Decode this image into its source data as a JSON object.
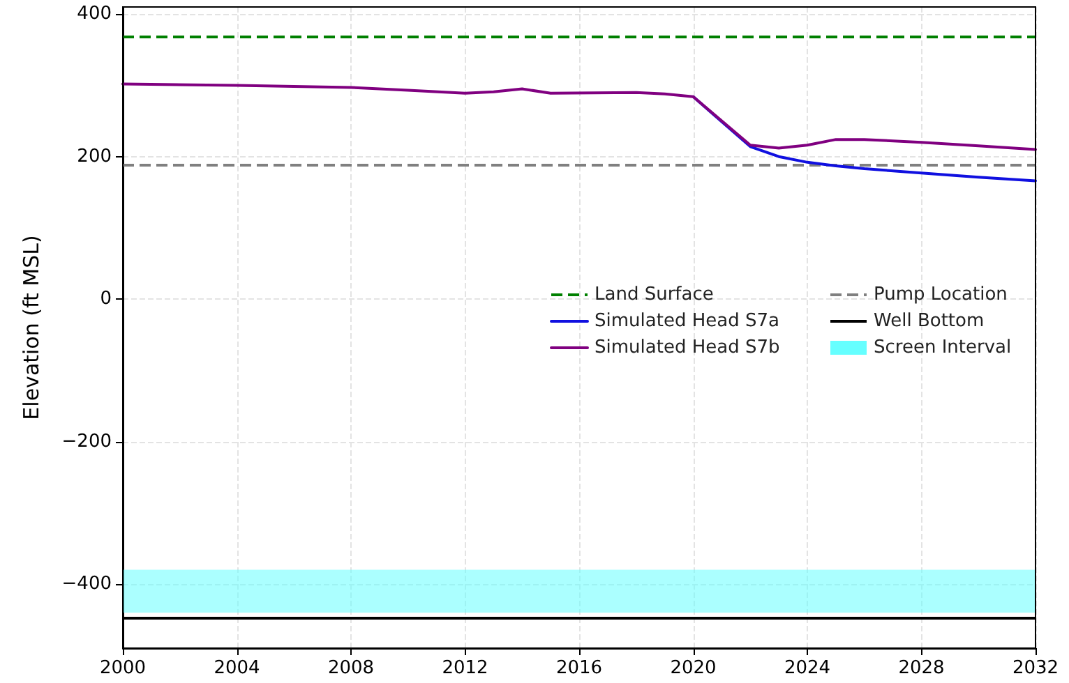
{
  "chart_data": {
    "type": "line",
    "ylabel": "Elevation (ft MSL)",
    "xlim": [
      2000,
      2032
    ],
    "xticks": [
      2000,
      2004,
      2008,
      2012,
      2016,
      2020,
      2024,
      2028,
      2032
    ],
    "ylim": [
      -490,
      410
    ],
    "yticks": [
      -400,
      -200,
      0,
      200,
      400
    ],
    "grid": true,
    "legend": "right",
    "marker": "none",
    "line_style": "solid",
    "series": [
      {
        "name": "Simulated Head S7a",
        "color": "#1010e0",
        "x": [
          2020,
          2022,
          2023,
          2024,
          2025,
          2026,
          2028,
          2030,
          2032
        ],
        "values": [
          284,
          214,
          200,
          192,
          187,
          183,
          177,
          171,
          166
        ]
      },
      {
        "name": "Simulated Head S7b",
        "color": "#800080",
        "x": [
          2000,
          2004,
          2008,
          2010,
          2012,
          2013,
          2014,
          2015,
          2018,
          2019,
          2020,
          2022,
          2023,
          2024,
          2025,
          2026,
          2028,
          2030,
          2032
        ],
        "values": [
          302,
          300,
          297,
          293,
          289,
          291,
          295,
          289,
          290,
          288,
          284,
          216,
          212,
          216,
          224,
          224,
          220,
          215,
          210
        ]
      }
    ],
    "ref_lines": [
      {
        "axis": "y",
        "value": 368,
        "label": "Land Surface",
        "color": "#008000",
        "line_style": "dashed"
      },
      {
        "axis": "y",
        "value": 188,
        "label": "Pump Location",
        "color": "#808080",
        "line_style": "dashed"
      },
      {
        "axis": "y",
        "value": -448,
        "label": "Well Bottom",
        "color": "#000000",
        "line_style": "solid"
      }
    ],
    "bands": [
      {
        "axis": "y",
        "from": -440,
        "to": -380,
        "label": "Screen Interval",
        "color": "#66ffff"
      }
    ]
  }
}
